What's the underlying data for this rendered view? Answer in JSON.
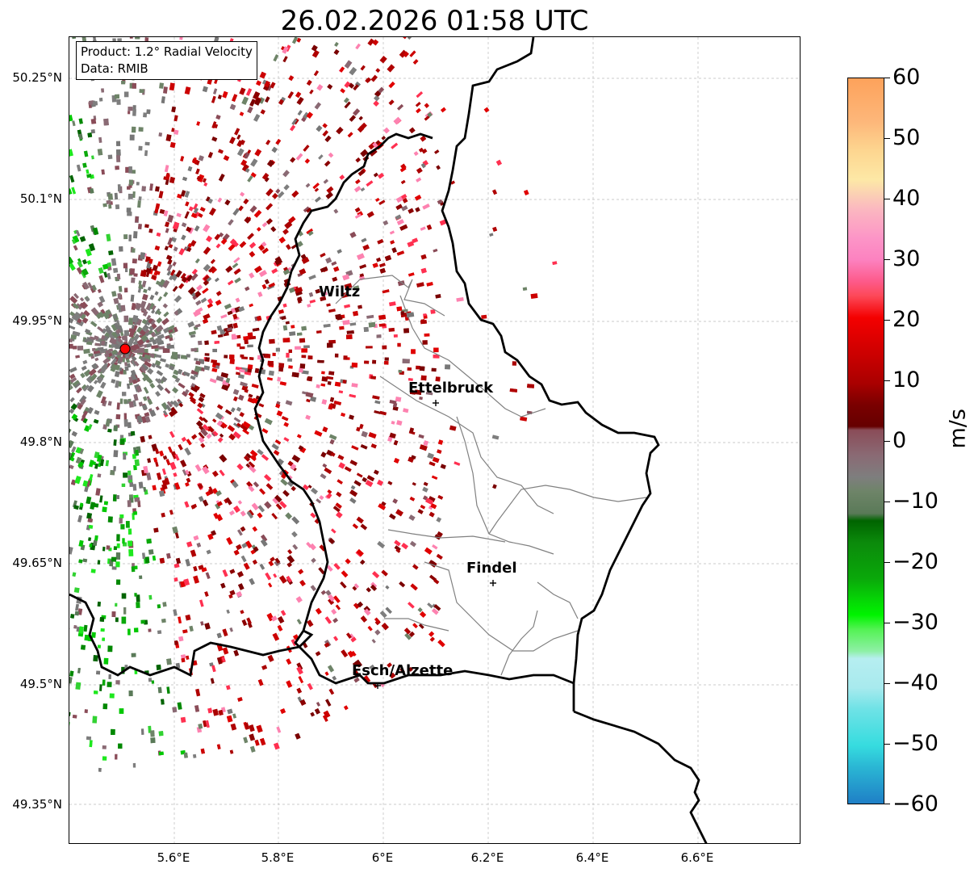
{
  "title": "26.02.2026 01:58 UTC",
  "info": {
    "product": "Product: 1.2° Radial Velocity",
    "data": "Data: RMIB"
  },
  "lat_labels": [
    "50.25°N",
    "50.1°N",
    "49.95°N",
    "49.8°N",
    "49.65°N",
    "49.5°N",
    "49.35°N"
  ],
  "lon_labels": [
    "5.6°E",
    "5.8°E",
    "6°E",
    "6.2°E",
    "6.4°E",
    "6.6°E"
  ],
  "cities": [
    {
      "name": "Wiltz"
    },
    {
      "name": "Ettelbruck"
    },
    {
      "name": "Findel"
    },
    {
      "name": "Esch/Alzette"
    }
  ],
  "colorbar": {
    "unit": "m/s",
    "ticks": [
      "60",
      "50",
      "40",
      "30",
      "20",
      "10",
      "0",
      "−10",
      "−20",
      "−30",
      "−40",
      "−50",
      "−60"
    ],
    "min": -60,
    "max": 60
  },
  "colors": {
    "border": "#000000",
    "internal_border": "#808080",
    "radar_site": "#ff0000"
  }
}
